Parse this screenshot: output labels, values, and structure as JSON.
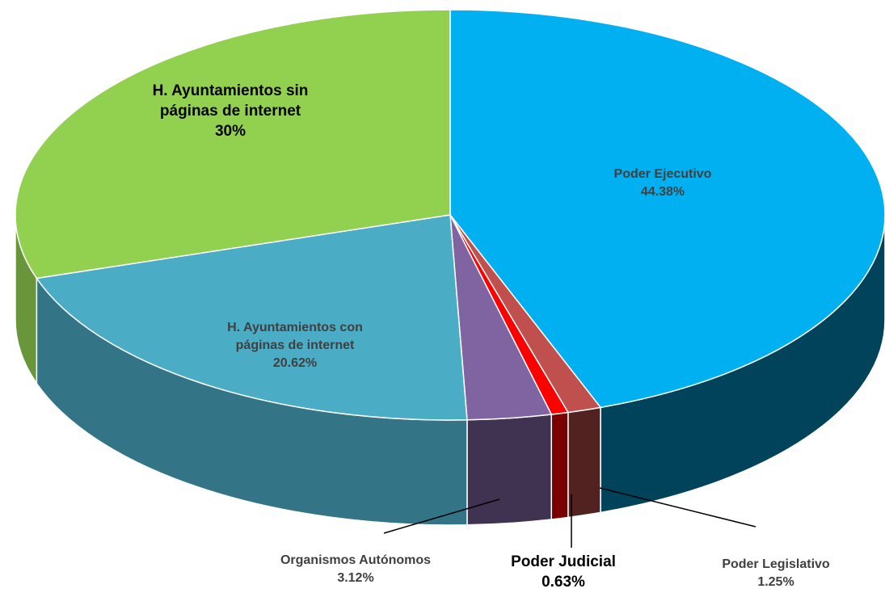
{
  "chart_data": {
    "type": "pie3d",
    "categories": [
      "Poder Ejecutivo",
      "Poder Legislativo",
      "Poder Judicial",
      "Organismos Autónomos",
      "H. Ayuntamientos con páginas de internet",
      "H. Ayuntamientos sin páginas de internet"
    ],
    "values": [
      44.38,
      1.25,
      0.63,
      3.12,
      20.62,
      30
    ],
    "value_labels": [
      "44.38%",
      "1.25%",
      "0.63%",
      "3.12%",
      "20.62%",
      "30%"
    ],
    "colors": [
      "#00b0f0",
      "#c0504d",
      "#ff0000",
      "#8064a2",
      "#4bacc6",
      "#92d050"
    ]
  }
}
